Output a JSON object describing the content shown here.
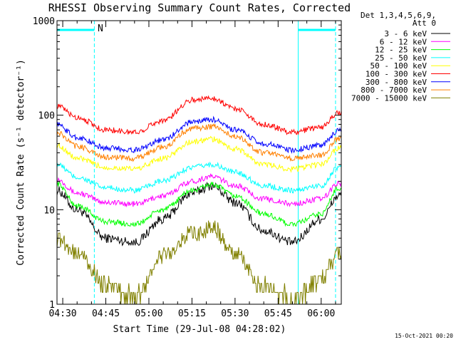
{
  "chart_data": {
    "type": "line",
    "title": "RHESSI Observing Summary Count Rates, Corrected",
    "xlabel": "Start Time (29-Jul-08 04:28:02)",
    "ylabel": "Corrected Count Rate (s⁻¹ detector⁻¹)",
    "ylim": [
      1,
      1000
    ],
    "y_scale": "log",
    "xlim": [
      "04:28",
      "06:07"
    ],
    "x_ticks": [
      "04:30",
      "04:45",
      "05:00",
      "05:15",
      "05:30",
      "05:45",
      "06:00"
    ],
    "y_ticks": [
      "1",
      "10",
      "100",
      "1000"
    ],
    "legend_header": [
      "Det 1,3,4,5,6,9,",
      "Att 0"
    ],
    "legend_position": "right",
    "annotation": "N",
    "timestamp": "15-Oct-2021 00:20",
    "markers": {
      "solid_lines": [
        "04:28",
        "05:52"
      ],
      "dashed_lines": [
        "04:41",
        "06:05"
      ],
      "bars": [
        [
          "04:28",
          "04:41"
        ],
        [
          "05:52",
          "06:05"
        ]
      ],
      "color": "#00ffff"
    },
    "x": [
      "04:28",
      "04:35",
      "04:45",
      "04:55",
      "05:05",
      "05:15",
      "05:22",
      "05:30",
      "05:40",
      "05:50",
      "06:00",
      "06:06"
    ],
    "series": [
      {
        "name": "3 - 6 keV",
        "color": "#000000",
        "values": [
          16,
          10,
          5,
          4.5,
          8,
          15,
          18,
          12,
          6,
          4.5,
          8,
          14
        ]
      },
      {
        "name": "6 - 12 keV",
        "color": "#ff00ff",
        "values": [
          21,
          15,
          12,
          11.5,
          14,
          20,
          22.5,
          18,
          13,
          11.5,
          13,
          19
        ]
      },
      {
        "name": "12 - 25 keV",
        "color": "#00ff00",
        "values": [
          19,
          11,
          7.5,
          7,
          10,
          16,
          18.5,
          14,
          9,
          7,
          9,
          17
        ]
      },
      {
        "name": "25 - 50 keV",
        "color": "#00ffff",
        "values": [
          30,
          22,
          17,
          16,
          20,
          28,
          30,
          25,
          18,
          16,
          18,
          28
        ]
      },
      {
        "name": "50 - 100 keV",
        "color": "#ffff00",
        "values": [
          48,
          35,
          28,
          27,
          35,
          52,
          56,
          44,
          30,
          27,
          30,
          45
        ]
      },
      {
        "name": "100 - 300 keV",
        "color": "#ff0000",
        "values": [
          125,
          95,
          70,
          66,
          88,
          145,
          152,
          118,
          80,
          66,
          75,
          105
        ]
      },
      {
        "name": "300 - 800 keV",
        "color": "#0000ff",
        "values": [
          80,
          58,
          45,
          43,
          55,
          85,
          90,
          70,
          50,
          43,
          48,
          68
        ]
      },
      {
        "name": "800 - 7000 keV",
        "color": "#ff8000",
        "values": [
          65,
          47,
          36,
          35,
          46,
          72,
          76,
          60,
          40,
          35,
          38,
          56
        ]
      },
      {
        "name": "7000 - 15000 keV",
        "color": "#808000",
        "values": [
          5,
          3.5,
          1.6,
          1.2,
          3.3,
          5.5,
          6.5,
          3.3,
          1.5,
          1.2,
          1.8,
          3.5
        ]
      }
    ]
  }
}
